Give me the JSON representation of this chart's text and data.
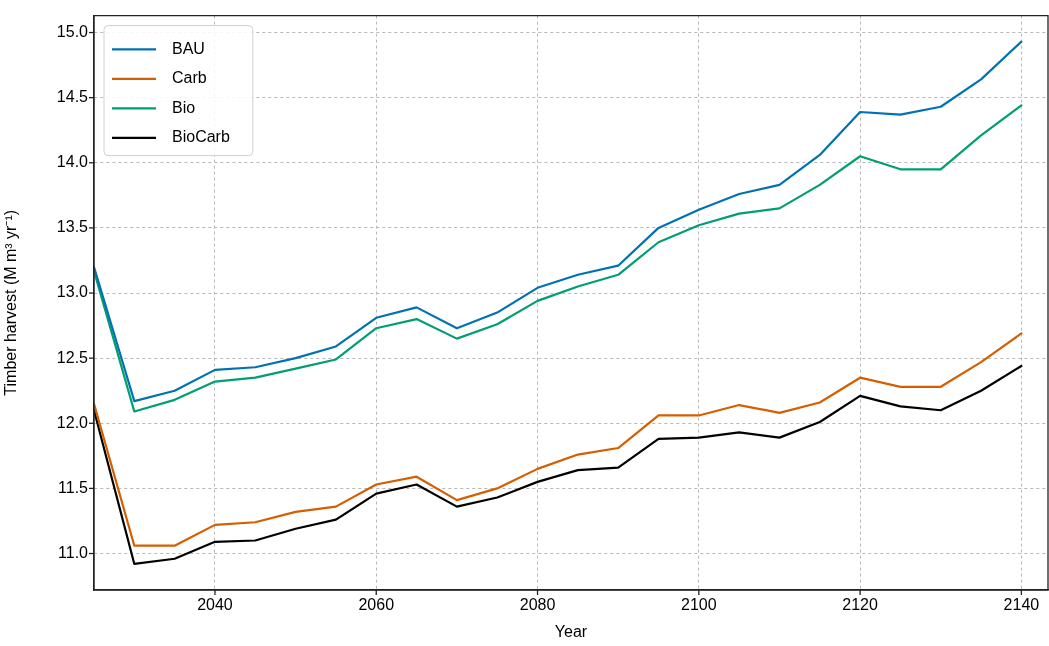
{
  "chart_data": {
    "type": "line",
    "xlabel": "Year",
    "ylabel": "Timber harvest (M m³ yr⁻¹)",
    "x": [
      2025,
      2030,
      2035,
      2040,
      2045,
      2050,
      2055,
      2060,
      2065,
      2070,
      2075,
      2080,
      2085,
      2090,
      2095,
      2100,
      2105,
      2110,
      2115,
      2120,
      2125,
      2130,
      2135,
      2140
    ],
    "series": [
      {
        "name": "BAU",
        "color": "#0072b2",
        "values": [
          13.2,
          12.17,
          12.25,
          12.41,
          12.43,
          12.5,
          12.59,
          12.81,
          12.89,
          12.73,
          12.85,
          13.04,
          13.14,
          13.21,
          13.5,
          13.64,
          13.76,
          13.83,
          14.06,
          14.39,
          14.37,
          14.43,
          14.64,
          14.93
        ]
      },
      {
        "name": "Carb",
        "color": "#d55e00",
        "values": [
          12.15,
          11.06,
          11.06,
          11.22,
          11.24,
          11.32,
          11.36,
          11.53,
          11.59,
          11.41,
          11.5,
          11.65,
          11.76,
          11.81,
          12.06,
          12.06,
          12.14,
          12.08,
          12.16,
          12.35,
          12.28,
          12.28,
          12.47,
          12.69
        ]
      },
      {
        "name": "Bio",
        "color": "#009e73",
        "values": [
          13.17,
          12.09,
          12.18,
          12.32,
          12.35,
          12.42,
          12.49,
          12.73,
          12.8,
          12.65,
          12.76,
          12.94,
          13.05,
          13.14,
          13.39,
          13.52,
          13.61,
          13.65,
          13.83,
          14.05,
          13.95,
          13.95,
          14.21,
          14.44
        ]
      },
      {
        "name": "BioCarb",
        "color": "#000000",
        "values": [
          12.1,
          10.92,
          10.96,
          11.09,
          11.1,
          11.19,
          11.26,
          11.46,
          11.53,
          11.36,
          11.43,
          11.55,
          11.64,
          11.66,
          11.88,
          11.89,
          11.93,
          11.89,
          12.01,
          12.21,
          12.13,
          12.1,
          12.25,
          12.44
        ]
      }
    ],
    "xlim": [
      2025,
      2143.3
    ],
    "ylim": [
      10.72,
      15.13
    ],
    "xticks": [
      2040,
      2060,
      2080,
      2100,
      2120,
      2140
    ],
    "yticks": [
      {
        "value": 11,
        "label": "11.0"
      },
      {
        "value": 11.5,
        "label": "11.5"
      },
      {
        "value": 12,
        "label": "12.0"
      },
      {
        "value": 12.5,
        "label": "12.5"
      },
      {
        "value": 13,
        "label": "13.0"
      },
      {
        "value": 13.5,
        "label": "13.5"
      },
      {
        "value": 14,
        "label": "14.0"
      },
      {
        "value": 14.5,
        "label": "14.5"
      },
      {
        "value": 15,
        "label": "15.0"
      }
    ],
    "grid": true,
    "legend": "top left",
    "marker": "none",
    "line_style": "solid"
  }
}
